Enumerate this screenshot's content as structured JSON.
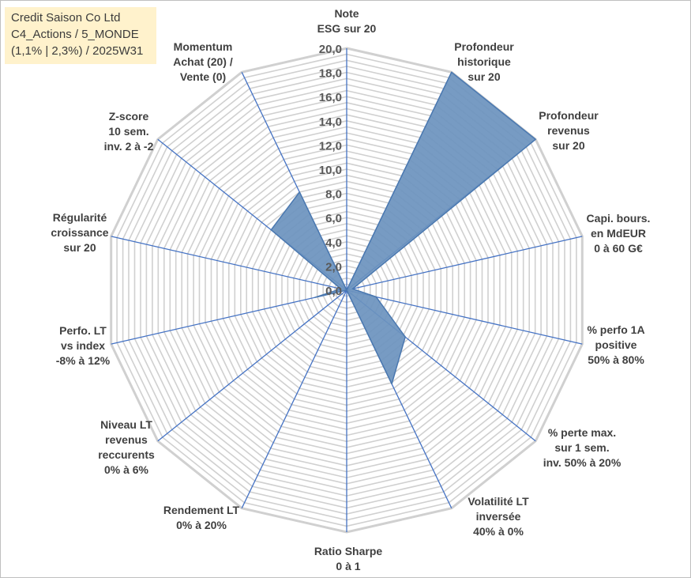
{
  "title_lines": [
    "Credit Saison Co Ltd",
    "C4_Actions / 5_MONDE",
    "(1,1% | 2,3%) / 2025W31"
  ],
  "chart_data": {
    "type": "radar",
    "rmin": 0,
    "rmax": 20,
    "ticks": [
      "0,0",
      "2,0",
      "4,0",
      "6,0",
      "8,0",
      "10,0",
      "12,0",
      "14,0",
      "16,0",
      "18,0",
      "20,0"
    ],
    "axes": [
      {
        "label": [
          "Note",
          "ESG sur 20"
        ],
        "value": 0
      },
      {
        "label": [
          "Profondeur",
          "historique",
          "sur 20"
        ],
        "value": 20
      },
      {
        "label": [
          "Profondeur",
          "revenus",
          "sur 20"
        ],
        "value": 20
      },
      {
        "label": [
          "Capi. bours.",
          "en MdEUR",
          "0 à 60 G€"
        ],
        "value": 0.5
      },
      {
        "label": [
          "% perfo 1A",
          "positive",
          "50% à 80%"
        ],
        "value": 2.5
      },
      {
        "label": [
          "% perte max.",
          "sur 1 sem.",
          "inv. 50% à 20%"
        ],
        "value": 6.2
      },
      {
        "label": [
          "Volatilité LT",
          "inversée",
          "40% à 0%"
        ],
        "value": 8.6
      },
      {
        "label": [
          "Ratio Sharpe",
          "0 à 1"
        ],
        "value": 0
      },
      {
        "label": [
          "Rendement LT",
          "0% à 20%"
        ],
        "value": 0
      },
      {
        "label": [
          "Niveau LT",
          "revenus",
          "reccurents",
          "0% à 6%"
        ],
        "value": 0
      },
      {
        "label": [
          "Perfo. LT",
          "vs index",
          "-8% à 12%"
        ],
        "value": 2.7
      },
      {
        "label": [
          "Régularité",
          "croissance",
          "sur 20"
        ],
        "value": 0.5
      },
      {
        "label": [
          "Z-score",
          "10 sem.",
          "inv. 2 à -2"
        ],
        "value": 8.0
      },
      {
        "label": [
          "Momentum",
          "Achat (20) /",
          "Vente (0)"
        ],
        "value": 9.0
      }
    ],
    "colors": {
      "fill": "#6b93be",
      "stroke": "#4a78b0",
      "grid": "#d0d0d0",
      "spoke": "#4472c4"
    }
  }
}
